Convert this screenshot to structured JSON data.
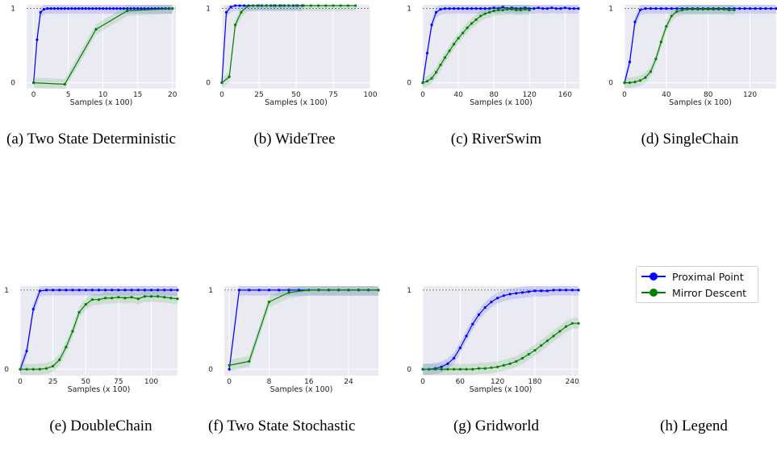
{
  "colors": {
    "proximal": "#0000ff",
    "mirror": "#008000",
    "plot_bg": "#eaeaf2",
    "grid": "#ffffff"
  },
  "legend": {
    "entries": [
      {
        "label": "Proximal Point",
        "color": "#0000ff"
      },
      {
        "label": "Mirror Descent",
        "color": "#008000"
      }
    ]
  },
  "captions": [
    "(a) Two State Deterministic",
    "(b) WideTree",
    "(c) RiverSwim",
    "(d) SingleChain",
    "(e) DoubleChain",
    "(f) Two State Stochastic",
    "(g) Gridworld",
    "(h) Legend"
  ],
  "chart_data": [
    {
      "type": "line",
      "xlabel": "Samples (x 100)",
      "xlim": [
        -1,
        20.5
      ],
      "ylim": [
        -0.08,
        1.05
      ],
      "xticks": [
        0,
        5,
        10,
        15,
        20
      ],
      "yticks": [
        0,
        1
      ],
      "reference_line": 1,
      "series": [
        {
          "name": "Proximal Point",
          "color": "#0000ff",
          "x": [
            0,
            0.5,
            1,
            1.5,
            2,
            2.5,
            3,
            3.5,
            4,
            4.5,
            5,
            5.5,
            6,
            6.5,
            7,
            7.5,
            8,
            8.5,
            9,
            9.5,
            10,
            10.5,
            11,
            11.5,
            12,
            12.5,
            13,
            13.5,
            14,
            14.5,
            15,
            15.5,
            16,
            16.5,
            17,
            17.5,
            18,
            18.5,
            19,
            19.5,
            20
          ],
          "y": [
            0,
            0.58,
            0.95,
            0.99,
            1,
            1,
            1,
            1,
            1,
            1,
            1,
            1,
            1,
            1,
            1,
            1,
            1,
            1,
            1,
            1,
            1,
            1,
            1,
            1,
            1,
            1,
            1,
            1,
            1,
            1,
            1,
            1,
            1,
            1,
            1,
            1,
            1,
            1,
            1,
            1,
            1
          ]
        },
        {
          "name": "Mirror Descent",
          "color": "#008000",
          "x": [
            0,
            4.5,
            9,
            13.5,
            20
          ],
          "y": [
            0,
            -0.02,
            0.72,
            0.97,
            1
          ]
        }
      ]
    },
    {
      "type": "line",
      "xlabel": "Samples (x 100)",
      "xlim": [
        0,
        100
      ],
      "ylim": [
        -0.08,
        1.05
      ],
      "xticks": [
        0,
        25,
        50,
        75,
        100
      ],
      "yticks": [
        0,
        1
      ],
      "reference_line": 1,
      "series": [
        {
          "name": "Proximal Point",
          "color": "#0000ff",
          "x": [
            0,
            3,
            6,
            9,
            12,
            15,
            18,
            21,
            24,
            27,
            30,
            33,
            36,
            39,
            42,
            45,
            48,
            51,
            54
          ],
          "y": [
            0,
            0.95,
            1.02,
            1.04,
            1.04,
            1.04,
            1.04,
            1.04,
            1.04,
            1.04,
            1.04,
            1.04,
            1.04,
            1.04,
            1.04,
            1.04,
            1.04,
            1.04,
            1.04
          ]
        },
        {
          "name": "Mirror Descent",
          "color": "#008000",
          "x": [
            0,
            5,
            9,
            13,
            17,
            21,
            25,
            30,
            35,
            40,
            45,
            50,
            55,
            60,
            65,
            70,
            75,
            80,
            85,
            90
          ],
          "y": [
            0,
            0.08,
            0.78,
            0.95,
            1.03,
            1.04,
            1.04,
            1.04,
            1.04,
            1.04,
            1.04,
            1.04,
            1.04,
            1.04,
            1.04,
            1.04,
            1.04,
            1.04,
            1.04,
            1.04
          ]
        }
      ]
    },
    {
      "type": "line",
      "xlabel": "Samples (x 100)",
      "xlim": [
        0,
        176
      ],
      "ylim": [
        -0.08,
        1.05
      ],
      "xticks": [
        0,
        40,
        80,
        120,
        160
      ],
      "yticks": [
        0,
        1
      ],
      "reference_line": 1,
      "series": [
        {
          "name": "Proximal Point",
          "color": "#0000ff",
          "x": [
            0,
            5,
            10,
            15,
            20,
            25,
            30,
            35,
            40,
            45,
            50,
            55,
            60,
            65,
            70,
            75,
            80,
            85,
            90,
            95,
            100,
            105,
            110,
            115,
            120,
            125,
            130,
            135,
            140,
            145,
            150,
            155,
            160,
            165,
            170,
            175
          ],
          "y": [
            0,
            0.4,
            0.78,
            0.95,
            0.99,
            1,
            1,
            1,
            1,
            1,
            1,
            1,
            1,
            1,
            1,
            1,
            1.01,
            1,
            1.02,
            1,
            1.01,
            1,
            1,
            1.01,
            1,
            1,
            1.01,
            1,
            1,
            1.01,
            1,
            1,
            1.01,
            1,
            1,
            1
          ]
        },
        {
          "name": "Mirror Descent",
          "color": "#008000",
          "x": [
            0,
            5,
            10,
            15,
            20,
            25,
            30,
            35,
            40,
            45,
            50,
            55,
            60,
            65,
            70,
            75,
            80,
            85,
            90,
            95,
            100,
            105,
            110,
            115,
            120
          ],
          "y": [
            0,
            0.02,
            0.06,
            0.14,
            0.24,
            0.34,
            0.43,
            0.52,
            0.6,
            0.67,
            0.74,
            0.8,
            0.85,
            0.9,
            0.93,
            0.95,
            0.97,
            0.98,
            0.98,
            0.99,
            0.99,
            0.98,
            0.98,
            0.99,
            0.98
          ]
        }
      ]
    },
    {
      "type": "line",
      "xlabel": "Samples (x 100)",
      "xlim": [
        0,
        145
      ],
      "ylim": [
        -0.08,
        1.05
      ],
      "xticks": [
        0,
        40,
        80,
        120
      ],
      "yticks": [
        0,
        1
      ],
      "reference_line": 1,
      "series": [
        {
          "name": "Proximal Point",
          "color": "#0000ff",
          "x": [
            0,
            5,
            10,
            15,
            20,
            25,
            30,
            35,
            40,
            45,
            50,
            55,
            60,
            65,
            70,
            75,
            80,
            85,
            90,
            95,
            100,
            105,
            110,
            115,
            120,
            125,
            130,
            135,
            140,
            145
          ],
          "y": [
            0,
            0.28,
            0.82,
            0.98,
            1,
            1,
            1,
            1,
            1,
            1,
            1,
            1,
            1,
            1,
            1,
            1,
            1,
            1,
            1,
            1,
            1,
            1,
            1,
            1,
            1,
            1,
            1,
            1,
            1,
            1
          ]
        },
        {
          "name": "Mirror Descent",
          "color": "#008000",
          "x": [
            0,
            5,
            10,
            15,
            20,
            25,
            30,
            35,
            40,
            45,
            50,
            55,
            60,
            65,
            70,
            75,
            80,
            85,
            90,
            95,
            100,
            105
          ],
          "y": [
            0,
            0,
            0.01,
            0.03,
            0.07,
            0.15,
            0.32,
            0.55,
            0.76,
            0.9,
            0.96,
            0.98,
            0.99,
            0.99,
            0.99,
            0.99,
            0.99,
            0.99,
            0.99,
            0.99,
            0.98,
            0.98
          ]
        }
      ]
    },
    {
      "type": "line",
      "xlabel": "Samples (x 100)",
      "xlim": [
        0,
        120
      ],
      "ylim": [
        -0.08,
        1.05
      ],
      "xticks": [
        0,
        25,
        50,
        75,
        100
      ],
      "yticks": [
        0,
        1
      ],
      "reference_line": 1,
      "series": [
        {
          "name": "Proximal Point",
          "color": "#0000ff",
          "x": [
            0,
            5,
            10,
            15,
            20,
            25,
            30,
            35,
            40,
            45,
            50,
            55,
            60,
            65,
            70,
            75,
            80,
            85,
            90,
            95,
            100,
            105,
            110,
            115,
            120
          ],
          "y": [
            0,
            0.23,
            0.76,
            0.99,
            1,
            1,
            1,
            1,
            1,
            1,
            1,
            1,
            1,
            1,
            1,
            1,
            1,
            1,
            1,
            1,
            1,
            1,
            1,
            1,
            1
          ]
        },
        {
          "name": "Mirror Descent",
          "color": "#008000",
          "x": [
            0,
            5,
            10,
            15,
            20,
            25,
            30,
            35,
            40,
            45,
            50,
            55,
            60,
            65,
            70,
            75,
            80,
            85,
            90,
            95,
            100,
            105,
            110,
            115,
            120
          ],
          "y": [
            0,
            0,
            0,
            0,
            0.01,
            0.04,
            0.12,
            0.28,
            0.48,
            0.72,
            0.82,
            0.88,
            0.88,
            0.9,
            0.9,
            0.91,
            0.9,
            0.91,
            0.89,
            0.92,
            0.92,
            0.92,
            0.91,
            0.9,
            0.89
          ]
        }
      ]
    },
    {
      "type": "line",
      "xlabel": "Samples (x 100)",
      "xlim": [
        -1,
        30
      ],
      "ylim": [
        -0.08,
        1.05
      ],
      "xticks": [
        0,
        8,
        16,
        24
      ],
      "yticks": [
        0,
        1
      ],
      "reference_line": 1,
      "series": [
        {
          "name": "Proximal Point",
          "color": "#0000ff",
          "x": [
            0,
            2,
            4,
            6,
            8,
            10,
            12,
            14,
            16,
            18,
            20,
            22,
            24,
            26,
            28,
            30
          ],
          "y": [
            0,
            1,
            1,
            1,
            1,
            1,
            1,
            1,
            1,
            1,
            1,
            1,
            1,
            1,
            1,
            1
          ]
        },
        {
          "name": "Mirror Descent",
          "color": "#008000",
          "x": [
            0,
            4,
            8,
            12,
            16,
            18,
            20,
            22,
            24,
            26,
            28,
            30
          ],
          "y": [
            0.05,
            0.1,
            0.85,
            0.97,
            1,
            1,
            1,
            1,
            1,
            1,
            1,
            1
          ]
        }
      ]
    },
    {
      "type": "line",
      "xlabel": "Samples (x 100)",
      "xlim": [
        0,
        250
      ],
      "ylim": [
        -0.08,
        1.05
      ],
      "xticks": [
        0,
        60,
        120,
        180,
        240
      ],
      "yticks": [
        0,
        1
      ],
      "reference_line": 1,
      "series": [
        {
          "name": "Proximal Point",
          "color": "#0000ff",
          "x": [
            0,
            10,
            20,
            30,
            40,
            50,
            60,
            70,
            80,
            90,
            100,
            110,
            120,
            130,
            140,
            150,
            160,
            170,
            180,
            190,
            200,
            210,
            220,
            230,
            240,
            250
          ],
          "y": [
            0,
            0,
            0.01,
            0.03,
            0.07,
            0.14,
            0.27,
            0.42,
            0.57,
            0.69,
            0.78,
            0.85,
            0.9,
            0.93,
            0.95,
            0.96,
            0.97,
            0.98,
            0.99,
            0.99,
            0.99,
            1,
            1,
            1,
            1,
            1
          ]
        },
        {
          "name": "Mirror Descent",
          "color": "#008000",
          "x": [
            0,
            10,
            20,
            30,
            40,
            50,
            60,
            70,
            80,
            90,
            100,
            110,
            120,
            130,
            140,
            150,
            160,
            170,
            180,
            190,
            200,
            210,
            220,
            230,
            240,
            250
          ],
          "y": [
            0,
            0,
            0,
            0,
            0,
            0,
            0,
            0,
            0,
            0.01,
            0.01,
            0.02,
            0.03,
            0.05,
            0.07,
            0.1,
            0.14,
            0.19,
            0.24,
            0.3,
            0.36,
            0.42,
            0.48,
            0.54,
            0.58,
            0.58
          ]
        }
      ]
    }
  ]
}
